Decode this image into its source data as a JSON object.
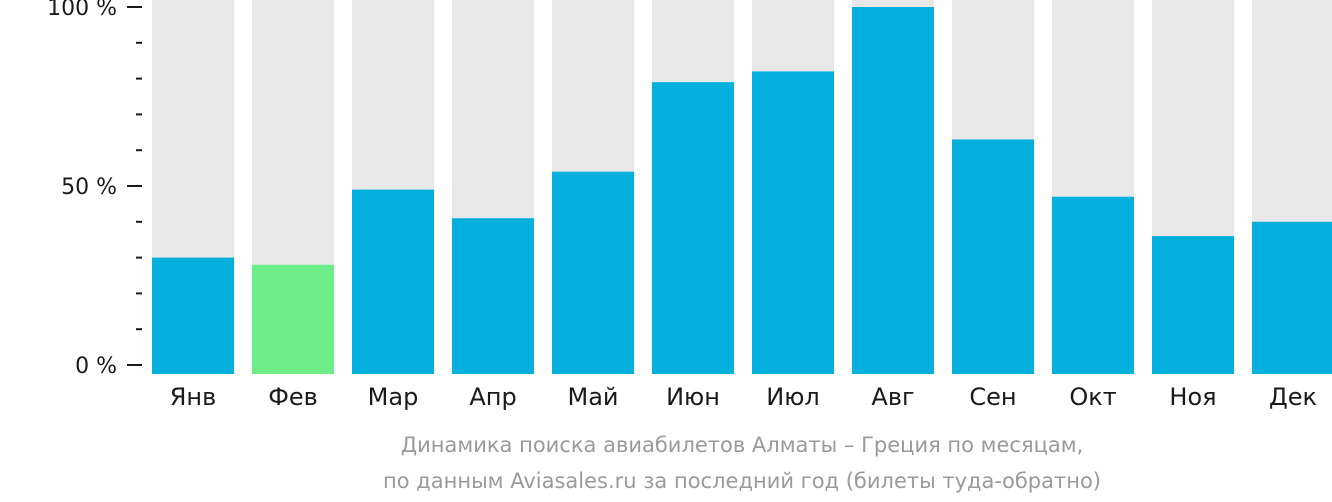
{
  "chart_data": {
    "type": "bar",
    "categories": [
      "Янв",
      "Фев",
      "Мар",
      "Апр",
      "Май",
      "Июн",
      "Июл",
      "Авг",
      "Сен",
      "Окт",
      "Ноя",
      "Дек"
    ],
    "values": [
      30,
      28,
      49,
      41,
      54,
      79,
      82,
      100,
      63,
      47,
      36,
      40
    ],
    "highlight_index": 1,
    "ylim": [
      0,
      100
    ],
    "ytick_values": [
      0,
      50,
      100
    ],
    "ytick_labels": [
      "0 %",
      "50 %",
      "100 %"
    ],
    "minor_ticks_per_major": 5,
    "caption_lines": [
      "Динамика поиска авиабилетов Алматы – Греция по месяцам,",
      "по данным Aviasales.ru за последний год (билеты туда-обратно)"
    ],
    "colors": {
      "bar": "#03b0dd",
      "highlight": "#6ded88",
      "background_bar": "#e8e8e8",
      "axis": "#1a1a1a",
      "caption": "#9a9a9a"
    }
  }
}
